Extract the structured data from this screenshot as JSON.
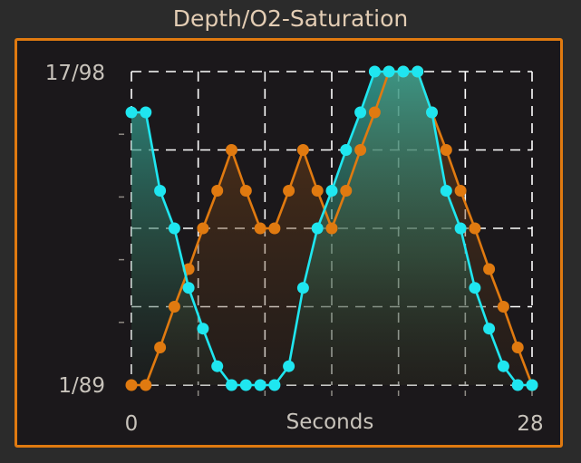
{
  "panel": {
    "title": "Depth/O2-Saturation"
  },
  "colors": {
    "depth": "#e07a10",
    "o2": "#1fe6f0",
    "frame": "#e07a10",
    "grid": "#ffffff",
    "text": "#c8c3bb",
    "background": "#1b181b"
  },
  "chart_data": {
    "type": "line",
    "title": "Depth/O2-Saturation",
    "xlabel": "Seconds",
    "ylabel": "",
    "x_tick_labels": [
      "0",
      "28"
    ],
    "y_tick_labels": [
      "1/89",
      "17/98"
    ],
    "xlim": [
      0,
      28
    ],
    "ylim": [
      0,
      1
    ],
    "grid": true,
    "area_fill": true,
    "x": [
      0,
      1,
      2,
      3,
      4,
      5,
      6,
      7,
      8,
      9,
      10,
      11,
      12,
      13,
      14,
      15,
      16,
      17,
      18,
      19,
      20,
      21,
      22,
      23,
      24,
      25,
      26,
      27,
      28
    ],
    "series": [
      {
        "color": "#e07a10",
        "values": [
          0.0,
          0.0,
          0.12,
          0.25,
          0.37,
          0.5,
          0.62,
          0.75,
          0.62,
          0.5,
          0.5,
          0.62,
          0.75,
          0.62,
          0.5,
          0.62,
          0.75,
          0.87,
          1.0,
          1.0,
          1.0,
          0.87,
          0.75,
          0.62,
          0.5,
          0.37,
          0.25,
          0.12,
          0.0
        ]
      },
      {
        "color": "#1fe6f0",
        "values": [
          0.87,
          0.87,
          0.62,
          0.5,
          0.31,
          0.18,
          0.06,
          0.0,
          0.0,
          0.0,
          0.0,
          0.06,
          0.31,
          0.5,
          0.62,
          0.75,
          0.87,
          1.0,
          1.0,
          1.0,
          1.0,
          0.87,
          0.62,
          0.5,
          0.31,
          0.18,
          0.06,
          0.0,
          0.0
        ]
      }
    ]
  }
}
